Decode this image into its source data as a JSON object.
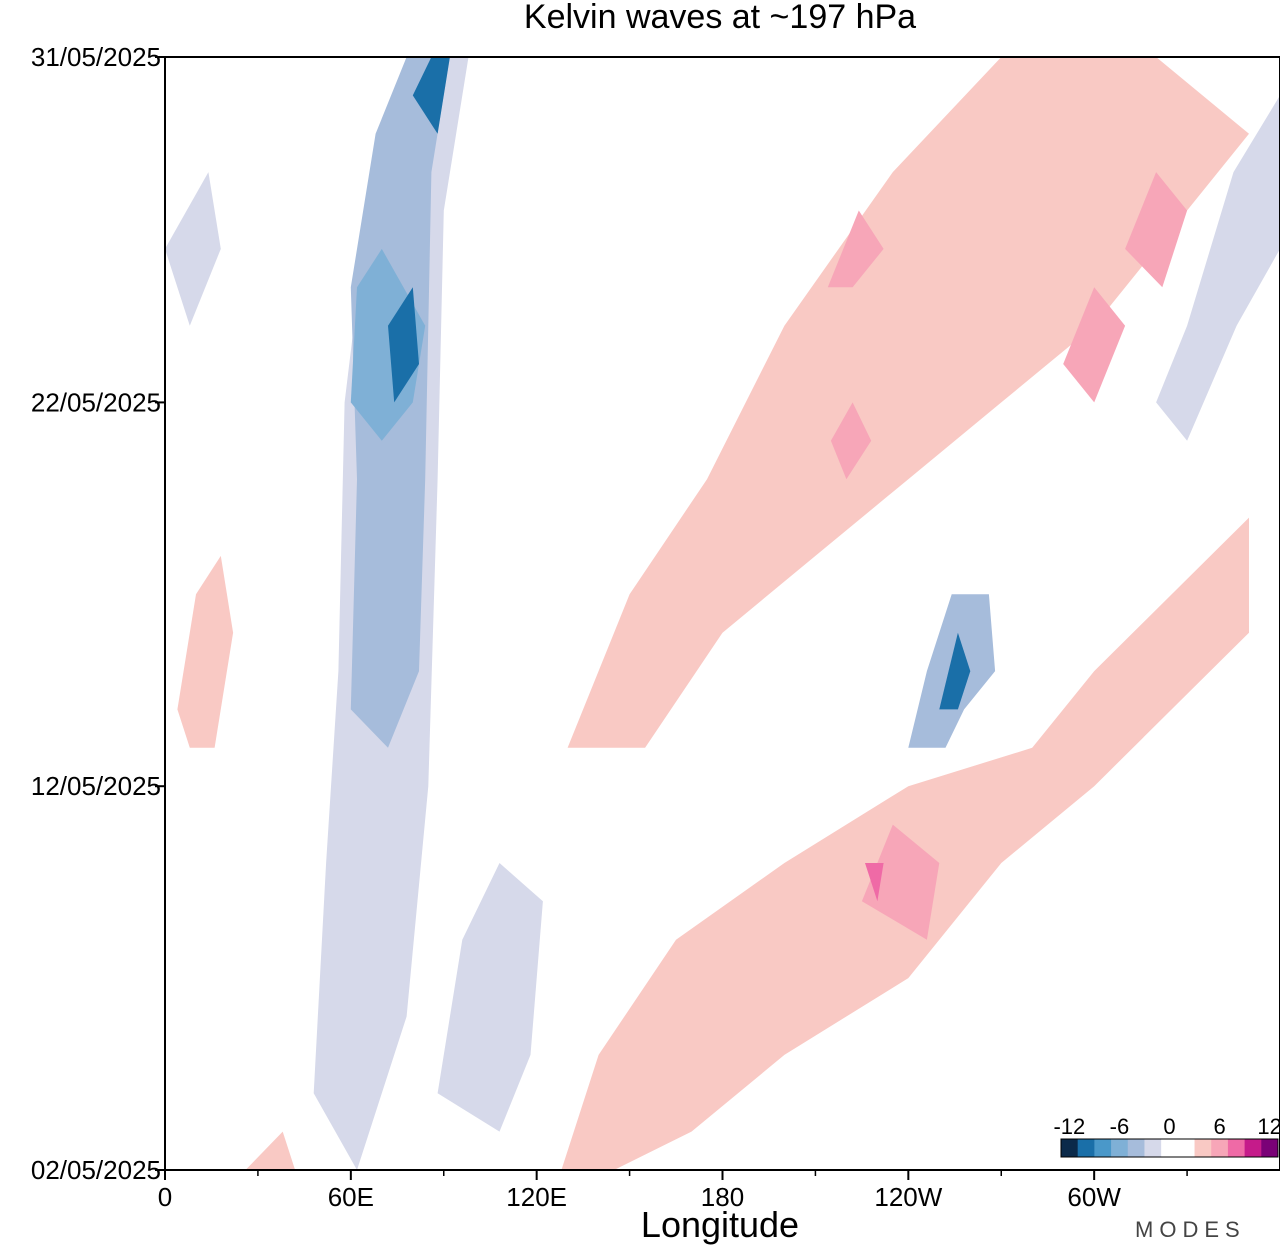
{
  "chart_data": {
    "type": "heatmap",
    "title": "Kelvin waves at ~197 hPa",
    "xlabel": "Longitude",
    "ylabel": "",
    "x_ticks": [
      {
        "lon": 0,
        "label": "0"
      },
      {
        "lon": 60,
        "label": "60E"
      },
      {
        "lon": 120,
        "label": "120E"
      },
      {
        "lon": 180,
        "label": "180"
      },
      {
        "lon": 240,
        "label": "120W"
      },
      {
        "lon": 300,
        "label": "60W"
      }
    ],
    "xlim": [
      0,
      360
    ],
    "y_ticks": [
      {
        "date": "2025-05-02",
        "label": "02/05/2025"
      },
      {
        "date": "2025-05-12",
        "label": "12/05/2025"
      },
      {
        "date": "2025-05-22",
        "label": "22/05/2025"
      },
      {
        "date": "2025-05-31",
        "label": "31/05/2025"
      }
    ],
    "ylim": [
      "2025-05-02",
      "2025-05-31"
    ],
    "grid": false,
    "colorbar": {
      "levels": [
        -12,
        -10,
        -8,
        -6,
        -4,
        -2,
        0,
        2,
        4,
        6,
        8,
        10,
        12
      ],
      "labels": [
        "-12",
        "-6",
        "0",
        "6",
        "12"
      ],
      "colors": [
        "#0b2a4a",
        "#1a6fa8",
        "#4a98c9",
        "#7fb0d6",
        "#a6bcdb",
        "#d6d9ea",
        "#ffffff",
        "#ffffff",
        "#f9c9c4",
        "#f7a6b8",
        "#ef6aa6",
        "#c51b8a",
        "#7a0177"
      ]
    },
    "features": [
      {
        "sign": "negative",
        "level": 2,
        "points": [
          [
            48,
            "2025-05-04"
          ],
          [
            52,
            "2025-05-10"
          ],
          [
            56,
            "2025-05-15"
          ],
          [
            58,
            "2025-05-22"
          ],
          [
            64,
            "2025-05-26"
          ],
          [
            80,
            "2025-05-31"
          ],
          [
            98,
            "2025-05-31"
          ],
          [
            90,
            "2025-05-27"
          ],
          [
            88,
            "2025-05-20"
          ],
          [
            85,
            "2025-05-12"
          ],
          [
            78,
            "2025-05-06"
          ],
          [
            62,
            "2025-05-02"
          ]
        ]
      },
      {
        "sign": "negative",
        "level": 4,
        "points": [
          [
            60,
            "2025-05-14"
          ],
          [
            62,
            "2025-05-20"
          ],
          [
            60,
            "2025-05-25"
          ],
          [
            68,
            "2025-05-29"
          ],
          [
            78,
            "2025-05-31"
          ],
          [
            92,
            "2025-05-31"
          ],
          [
            86,
            "2025-05-28"
          ],
          [
            84,
            "2025-05-20"
          ],
          [
            82,
            "2025-05-15"
          ],
          [
            72,
            "2025-05-13"
          ]
        ]
      },
      {
        "sign": "negative",
        "level": 6,
        "points": [
          [
            60,
            "2025-05-22"
          ],
          [
            62,
            "2025-05-25"
          ],
          [
            70,
            "2025-05-26"
          ],
          [
            84,
            "2025-05-24"
          ],
          [
            80,
            "2025-05-22"
          ],
          [
            70,
            "2025-05-21"
          ]
        ]
      },
      {
        "sign": "negative",
        "level": 10,
        "points": [
          [
            72,
            "2025-05-24"
          ],
          [
            80,
            "2025-05-25"
          ],
          [
            82,
            "2025-05-23"
          ],
          [
            74,
            "2025-05-22"
          ]
        ]
      },
      {
        "sign": "negative",
        "level": 10,
        "points": [
          [
            80,
            "2025-05-30"
          ],
          [
            86,
            "2025-05-31"
          ],
          [
            92,
            "2025-05-31"
          ],
          [
            88,
            "2025-05-29"
          ]
        ]
      },
      {
        "sign": "negative",
        "level": 4,
        "points": [
          [
            240,
            "2025-05-13"
          ],
          [
            246,
            "2025-05-15"
          ],
          [
            254,
            "2025-05-17"
          ],
          [
            266,
            "2025-05-17"
          ],
          [
            268,
            "2025-05-15"
          ],
          [
            258,
            "2025-05-14"
          ],
          [
            252,
            "2025-05-13"
          ]
        ]
      },
      {
        "sign": "negative",
        "level": 10,
        "points": [
          [
            250,
            "2025-05-14"
          ],
          [
            256,
            "2025-05-16"
          ],
          [
            260,
            "2025-05-15"
          ],
          [
            256,
            "2025-05-14"
          ]
        ]
      },
      {
        "sign": "negative",
        "level": 2,
        "points": [
          [
            320,
            "2025-05-22"
          ],
          [
            330,
            "2025-05-24"
          ],
          [
            345,
            "2025-05-28"
          ],
          [
            360,
            "2025-05-30"
          ],
          [
            360,
            "2025-05-26"
          ],
          [
            346,
            "2025-05-24"
          ],
          [
            330,
            "2025-05-21"
          ]
        ]
      },
      {
        "sign": "negative",
        "level": 2,
        "points": [
          [
            88,
            "2025-05-04"
          ],
          [
            96,
            "2025-05-08"
          ],
          [
            108,
            "2025-05-10"
          ],
          [
            122,
            "2025-05-09"
          ],
          [
            118,
            "2025-05-05"
          ],
          [
            108,
            "2025-05-03"
          ]
        ]
      },
      {
        "sign": "negative",
        "level": 2,
        "points": [
          [
            0,
            "2025-05-26"
          ],
          [
            14,
            "2025-05-28"
          ],
          [
            18,
            "2025-05-26"
          ],
          [
            8,
            "2025-05-24"
          ]
        ]
      },
      {
        "sign": "positive",
        "level": 2,
        "points": [
          [
            128,
            "2025-05-02"
          ],
          [
            140,
            "2025-05-05"
          ],
          [
            165,
            "2025-05-08"
          ],
          [
            200,
            "2025-05-10"
          ],
          [
            240,
            "2025-05-12"
          ],
          [
            280,
            "2025-05-13"
          ],
          [
            300,
            "2025-05-15"
          ],
          [
            350,
            "2025-05-19"
          ],
          [
            350,
            "2025-05-16"
          ],
          [
            300,
            "2025-05-12"
          ],
          [
            270,
            "2025-05-10"
          ],
          [
            240,
            "2025-05-07"
          ],
          [
            200,
            "2025-05-05"
          ],
          [
            170,
            "2025-05-03"
          ],
          [
            145,
            "2025-05-02"
          ]
        ]
      },
      {
        "sign": "positive",
        "level": 4,
        "points": [
          [
            225,
            "2025-05-09"
          ],
          [
            235,
            "2025-05-11"
          ],
          [
            250,
            "2025-05-10"
          ],
          [
            246,
            "2025-05-08"
          ]
        ]
      },
      {
        "sign": "positive",
        "level": 6,
        "points": [
          [
            226,
            "2025-05-10"
          ],
          [
            232,
            "2025-05-10"
          ],
          [
            230,
            "2025-05-09"
          ]
        ]
      },
      {
        "sign": "positive",
        "level": 2,
        "points": [
          [
            130,
            "2025-05-13"
          ],
          [
            150,
            "2025-05-17"
          ],
          [
            175,
            "2025-05-20"
          ],
          [
            200,
            "2025-05-24"
          ],
          [
            235,
            "2025-05-28"
          ],
          [
            270,
            "2025-05-31"
          ],
          [
            320,
            "2025-05-31"
          ],
          [
            350,
            "2025-05-29"
          ],
          [
            330,
            "2025-05-27"
          ],
          [
            300,
            "2025-05-24"
          ],
          [
            270,
            "2025-05-22"
          ],
          [
            240,
            "2025-05-20"
          ],
          [
            210,
            "2025-05-18"
          ],
          [
            180,
            "2025-05-16"
          ],
          [
            155,
            "2025-05-13"
          ]
        ]
      },
      {
        "sign": "positive",
        "level": 4,
        "points": [
          [
            214,
            "2025-05-25"
          ],
          [
            224,
            "2025-05-27"
          ],
          [
            232,
            "2025-05-26"
          ],
          [
            222,
            "2025-05-25"
          ]
        ]
      },
      {
        "sign": "positive",
        "level": 4,
        "points": [
          [
            215,
            "2025-05-21"
          ],
          [
            222,
            "2025-05-22"
          ],
          [
            228,
            "2025-05-21"
          ],
          [
            220,
            "2025-05-20"
          ]
        ]
      },
      {
        "sign": "positive",
        "level": 4,
        "points": [
          [
            290,
            "2025-05-23"
          ],
          [
            300,
            "2025-05-25"
          ],
          [
            310,
            "2025-05-24"
          ],
          [
            300,
            "2025-05-22"
          ]
        ]
      },
      {
        "sign": "positive",
        "level": 4,
        "points": [
          [
            310,
            "2025-05-26"
          ],
          [
            320,
            "2025-05-28"
          ],
          [
            330,
            "2025-05-27"
          ],
          [
            322,
            "2025-05-25"
          ]
        ]
      },
      {
        "sign": "positive",
        "level": 2,
        "points": [
          [
            4,
            "2025-05-14"
          ],
          [
            10,
            "2025-05-17"
          ],
          [
            18,
            "2025-05-18"
          ],
          [
            22,
            "2025-05-16"
          ],
          [
            16,
            "2025-05-13"
          ],
          [
            8,
            "2025-05-13"
          ]
        ]
      },
      {
        "sign": "positive",
        "level": 2,
        "points": [
          [
            26,
            "2025-05-02"
          ],
          [
            38,
            "2025-05-03"
          ],
          [
            42,
            "2025-05-02"
          ]
        ]
      }
    ]
  },
  "watermark": "MODES"
}
